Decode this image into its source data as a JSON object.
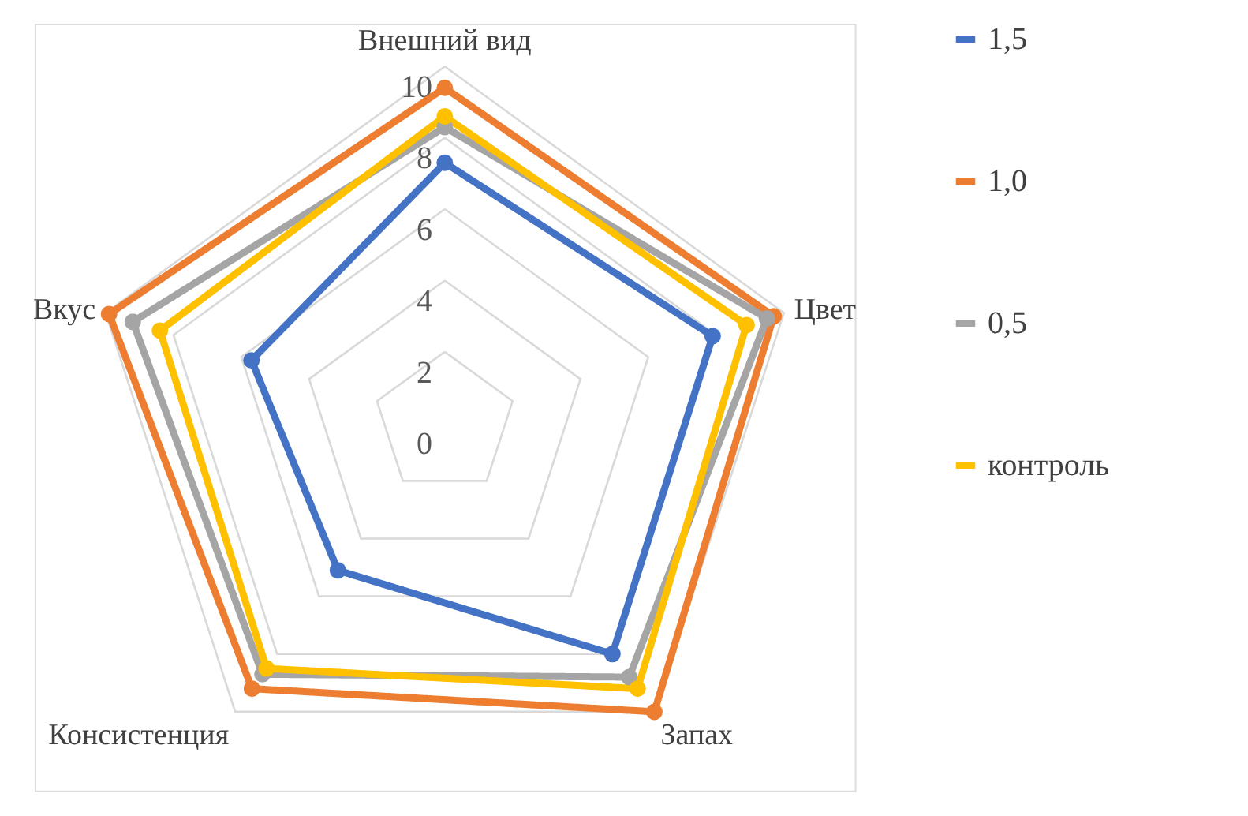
{
  "chart_data": {
    "type": "radar",
    "categories": [
      "Внешний вид",
      "Цвет",
      "Запах",
      "Консистенция",
      "Вкус"
    ],
    "series": [
      {
        "name": "1,5",
        "color": "#4472c4",
        "values": [
          7.3,
          7.9,
          8.0,
          5.1,
          5.7
        ]
      },
      {
        "name": "1,0",
        "color": "#ed7d31",
        "values": [
          9.4,
          9.7,
          10.0,
          9.2,
          9.9
        ]
      },
      {
        "name": "0,5",
        "color": "#a5a5a5",
        "values": [
          8.3,
          9.5,
          8.8,
          8.7,
          9.2
        ]
      },
      {
        "name": "контроль",
        "color": "#ffc000",
        "values": [
          8.6,
          8.9,
          9.2,
          8.5,
          8.4
        ]
      }
    ],
    "ylim": [
      0,
      10
    ],
    "yticks": [
      0,
      2,
      4,
      6,
      8,
      10
    ],
    "grid": true,
    "legend": "right",
    "marker": "circle",
    "line_style": "solid"
  }
}
